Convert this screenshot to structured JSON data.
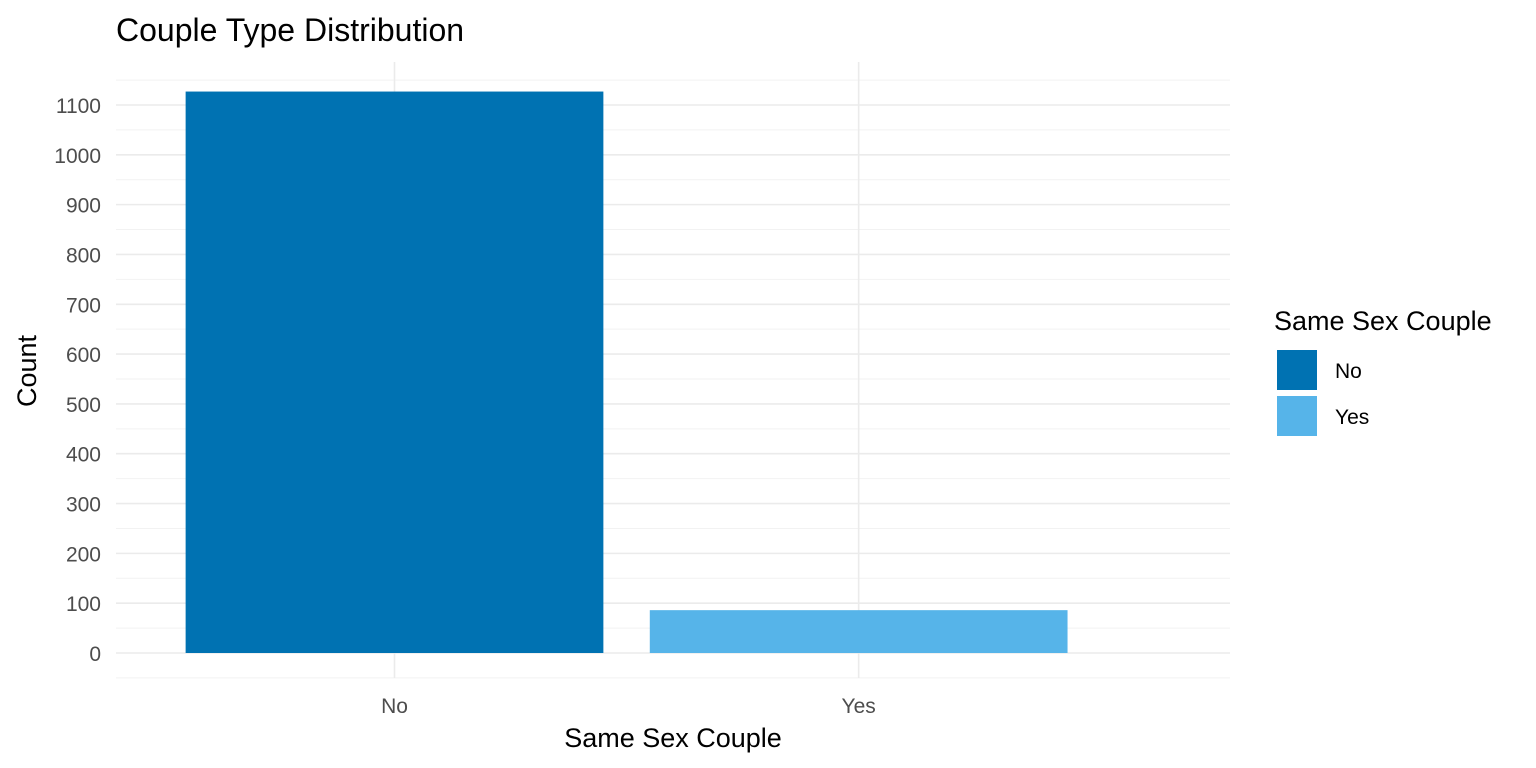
{
  "chart_data": {
    "type": "bar",
    "title": "Couple Type Distribution",
    "xlabel": "Same Sex Couple",
    "ylabel": "Count",
    "categories": [
      "No",
      "Yes"
    ],
    "values": [
      1127,
      86
    ],
    "colors": [
      "#0072B2",
      "#56B4E9"
    ],
    "ylim": [
      -50,
      1150
    ],
    "yticks": [
      0,
      100,
      200,
      300,
      400,
      500,
      600,
      700,
      800,
      900,
      1000,
      1100
    ],
    "grid": true,
    "legend": {
      "title": "Same Sex Couple",
      "position": "right",
      "entries": [
        {
          "label": "No",
          "color": "#0072B2"
        },
        {
          "label": "Yes",
          "color": "#56B4E9"
        }
      ]
    }
  }
}
